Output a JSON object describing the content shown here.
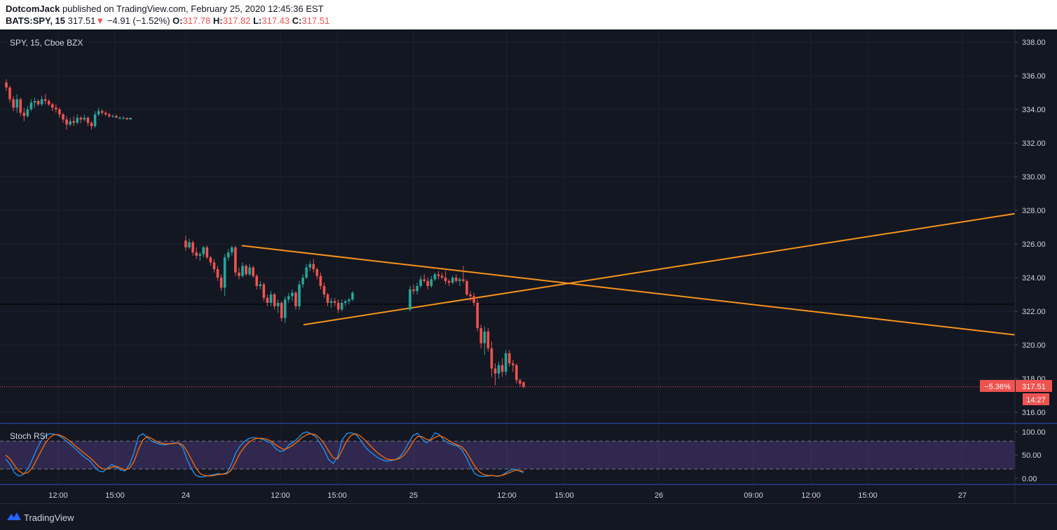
{
  "header": {
    "author": "DotcomJack",
    "published": "published on TradingView.com, February 25, 2020 12:45:36 EST",
    "symbol": "BATS:SPY, 15",
    "last": "317.51",
    "change_arrow": "▼",
    "change": "−4.91 (−1.52%)",
    "o_label": "O:",
    "o": "317.78",
    "h_label": "H:",
    "h": "317.82",
    "l_label": "L:",
    "l": "317.43",
    "c_label": "C:",
    "c": "317.51"
  },
  "legend": {
    "series": "SPY, 15, Cboe BZX",
    "indicator": "Stoch RSI"
  },
  "badges": {
    "pct": "−5.36%",
    "price": "317.51",
    "timer": "14:27"
  },
  "footer": {
    "brand": "TradingView"
  },
  "colors": {
    "up": "#26a69a",
    "down": "#ef5350",
    "trend": "#f7931a",
    "k_line": "#2196f3",
    "d_line": "#ff6d00",
    "band": "#7e57c2",
    "bg": "#131722",
    "text": "#d1d4dc"
  },
  "chart_data": [
    {
      "type": "candlestick",
      "title": "SPY, 15, Cboe BZX",
      "y_ticks": [
        "338.00",
        "336.00",
        "334.00",
        "332.00",
        "330.00",
        "328.00",
        "326.00",
        "324.00",
        "322.00",
        "320.00",
        "318.00",
        "316.00"
      ],
      "ylim": [
        315.0,
        339.0
      ],
      "x_ticks": [
        "12:00",
        "15:00",
        "24",
        "12:00",
        "15:00",
        "25",
        "12:00",
        "15:00",
        "26",
        "09:00",
        "12:00",
        "15:00",
        "27"
      ],
      "last_price": 317.51,
      "last_price_line": 317.51,
      "horizontal_line": 322.42,
      "trendlines": [
        {
          "from": [
            "Feb 24 ~11:00",
            325.9
          ],
          "to": [
            "right edge",
            320.6
          ]
        },
        {
          "from": [
            "Feb 24 ~13:00",
            321.2
          ],
          "to": [
            "right edge",
            327.8
          ]
        }
      ],
      "segments": [
        {
          "name": "Feb 21 session",
          "ohlc": [
            [
              335.6,
              335.8,
              335.1,
              335.3
            ],
            [
              335.3,
              335.4,
              334.4,
              334.6
            ],
            [
              334.6,
              334.8,
              333.9,
              334.1
            ],
            [
              334.1,
              334.9,
              333.8,
              334.6
            ],
            [
              334.6,
              334.7,
              333.6,
              333.8
            ],
            [
              333.8,
              334.1,
              333.3,
              333.6
            ],
            [
              333.6,
              334.2,
              333.5,
              334.0
            ],
            [
              334.0,
              334.6,
              333.9,
              334.4
            ],
            [
              334.4,
              334.7,
              334.1,
              334.5
            ],
            [
              334.5,
              334.6,
              334.2,
              334.3
            ],
            [
              334.3,
              334.8,
              334.2,
              334.6
            ],
            [
              334.6,
              334.9,
              334.3,
              334.5
            ],
            [
              334.5,
              334.6,
              334.2,
              334.3
            ],
            [
              334.3,
              334.4,
              333.9,
              334.1
            ],
            [
              334.1,
              334.3,
              333.8,
              334.0
            ],
            [
              334.0,
              334.1,
              333.5,
              333.7
            ],
            [
              333.7,
              333.8,
              333.2,
              333.4
            ],
            [
              333.4,
              333.6,
              332.8,
              333.1
            ],
            [
              333.1,
              333.5,
              333.0,
              333.3
            ],
            [
              333.3,
              333.6,
              333.0,
              333.2
            ],
            [
              333.2,
              333.7,
              333.1,
              333.5
            ],
            [
              333.5,
              333.6,
              333.2,
              333.4
            ],
            [
              333.4,
              333.7,
              333.3,
              333.5
            ],
            [
              333.5,
              333.6,
              333.0,
              333.2
            ],
            [
              333.2,
              333.3,
              332.8,
              333.0
            ],
            [
              333.0,
              333.9,
              332.9,
              333.7
            ],
            [
              333.7,
              334.1,
              333.6,
              333.9
            ],
            [
              333.9,
              334.0,
              333.7,
              333.8
            ],
            [
              333.8,
              333.9,
              333.6,
              333.7
            ],
            [
              333.7,
              333.8,
              333.5,
              333.6
            ],
            [
              333.6,
              333.7,
              333.5,
              333.6
            ],
            [
              333.6,
              333.7,
              333.5,
              333.5
            ],
            [
              333.5,
              333.6,
              333.4,
              333.5
            ],
            [
              333.5,
              333.6,
              333.4,
              333.5
            ],
            [
              333.5,
              333.5,
              333.4,
              333.4
            ],
            [
              333.4,
              333.5,
              333.4,
              333.5
            ]
          ]
        },
        {
          "name": "Feb 24 session",
          "ohlc": [
            [
              326.2,
              326.5,
              325.6,
              325.8
            ],
            [
              325.8,
              326.3,
              325.7,
              326.1
            ],
            [
              326.1,
              326.2,
              325.3,
              325.5
            ],
            [
              325.5,
              325.8,
              325.1,
              325.3
            ],
            [
              325.3,
              325.5,
              325.0,
              325.4
            ],
            [
              325.4,
              325.9,
              325.2,
              325.8
            ],
            [
              325.8,
              325.9,
              325.1,
              325.2
            ],
            [
              325.2,
              325.3,
              324.7,
              324.9
            ],
            [
              324.9,
              325.1,
              324.3,
              324.5
            ],
            [
              324.5,
              324.7,
              323.8,
              324.0
            ],
            [
              324.0,
              324.2,
              323.2,
              323.4
            ],
            [
              323.4,
              325.4,
              322.9,
              325.2
            ],
            [
              325.2,
              325.7,
              325.0,
              325.5
            ],
            [
              325.5,
              325.9,
              325.3,
              325.8
            ],
            [
              325.8,
              325.9,
              324.1,
              324.3
            ],
            [
              324.3,
              324.6,
              323.9,
              324.1
            ],
            [
              324.1,
              324.9,
              324.0,
              324.7
            ],
            [
              324.7,
              324.8,
              324.1,
              324.2
            ],
            [
              324.2,
              324.8,
              324.1,
              324.6
            ],
            [
              324.6,
              324.7,
              324.0,
              324.1
            ],
            [
              324.1,
              324.2,
              323.3,
              323.5
            ],
            [
              323.5,
              323.8,
              323.3,
              323.6
            ],
            [
              323.6,
              323.7,
              322.6,
              322.8
            ],
            [
              322.8,
              323.0,
              322.3,
              322.5
            ],
            [
              322.5,
              323.2,
              322.3,
              323.0
            ],
            [
              323.0,
              323.1,
              322.1,
              322.3
            ],
            [
              322.3,
              322.7,
              321.9,
              322.5
            ],
            [
              322.5,
              322.6,
              321.4,
              321.6
            ],
            [
              321.6,
              322.9,
              321.3,
              322.7
            ],
            [
              322.7,
              323.1,
              322.5,
              322.9
            ],
            [
              322.9,
              323.3,
              322.6,
              323.1
            ],
            [
              323.1,
              323.2,
              322.1,
              322.3
            ],
            [
              322.3,
              323.8,
              322.1,
              323.6
            ],
            [
              323.6,
              324.2,
              323.4,
              324.0
            ],
            [
              324.0,
              324.8,
              323.9,
              324.6
            ],
            [
              324.6,
              325.0,
              324.4,
              324.8
            ],
            [
              324.8,
              325.1,
              324.3,
              324.5
            ],
            [
              324.5,
              324.6,
              323.9,
              324.1
            ],
            [
              324.1,
              324.3,
              323.3,
              323.5
            ],
            [
              323.5,
              323.7,
              322.8,
              323.0
            ],
            [
              323.0,
              323.1,
              322.3,
              322.5
            ],
            [
              322.5,
              322.8,
              322.2,
              322.6
            ],
            [
              322.6,
              322.8,
              322.3,
              322.5
            ],
            [
              322.5,
              322.7,
              321.9,
              322.1
            ],
            [
              322.1,
              322.7,
              322.0,
              322.5
            ],
            [
              322.5,
              322.7,
              322.3,
              322.6
            ],
            [
              322.6,
              322.8,
              322.4,
              322.7
            ],
            [
              322.7,
              323.2,
              322.6,
              323.1
            ]
          ]
        },
        {
          "name": "Feb 25 session",
          "ohlc": [
            [
              322.1,
              323.5,
              322.0,
              323.3
            ],
            [
              323.3,
              323.6,
              323.0,
              323.2
            ],
            [
              323.2,
              323.7,
              323.0,
              323.5
            ],
            [
              323.5,
              324.1,
              323.4,
              323.9
            ],
            [
              323.9,
              324.2,
              323.7,
              323.8
            ],
            [
              323.8,
              324.0,
              323.3,
              323.5
            ],
            [
              323.5,
              324.1,
              323.4,
              323.9
            ],
            [
              323.9,
              324.3,
              323.8,
              324.2
            ],
            [
              324.2,
              324.4,
              323.9,
              324.1
            ],
            [
              324.1,
              324.3,
              323.9,
              324.0
            ],
            [
              324.0,
              324.4,
              323.6,
              323.8
            ],
            [
              323.8,
              323.9,
              323.5,
              323.7
            ],
            [
              323.7,
              324.1,
              323.6,
              324.0
            ],
            [
              324.0,
              324.2,
              323.7,
              323.8
            ],
            [
              323.8,
              324.0,
              323.5,
              323.9
            ],
            [
              323.9,
              324.7,
              323.7,
              323.8
            ],
            [
              323.8,
              323.9,
              322.9,
              323.0
            ],
            [
              323.0,
              323.2,
              322.6,
              322.9
            ],
            [
              322.9,
              323.1,
              322.3,
              322.5
            ],
            [
              322.5,
              322.7,
              320.8,
              321.0
            ],
            [
              321.0,
              321.2,
              319.8,
              320.1
            ],
            [
              320.1,
              321.1,
              319.4,
              320.8
            ],
            [
              320.8,
              321.0,
              319.6,
              319.8
            ],
            [
              319.8,
              320.2,
              318.1,
              318.6
            ],
            [
              318.6,
              318.9,
              317.6,
              318.3
            ],
            [
              318.3,
              319.0,
              318.0,
              318.8
            ],
            [
              318.8,
              319.2,
              318.1,
              318.4
            ],
            [
              318.4,
              319.7,
              318.2,
              319.5
            ],
            [
              319.5,
              319.7,
              318.7,
              318.9
            ],
            [
              318.9,
              319.1,
              318.4,
              318.8
            ],
            [
              318.8,
              318.9,
              317.7,
              317.9
            ],
            [
              317.9,
              318.0,
              317.5,
              317.7
            ],
            [
              317.78,
              317.82,
              317.43,
              317.51
            ]
          ]
        }
      ]
    },
    {
      "type": "line",
      "title": "Stoch RSI",
      "y_ticks": [
        "100.00",
        "50.00",
        "0.00"
      ],
      "ylim": [
        -10,
        110
      ],
      "band": [
        20,
        80
      ],
      "series": [
        {
          "values": [
            42,
            30,
            12,
            5,
            8,
            20,
            40,
            62,
            80,
            92,
            96,
            95,
            92,
            86,
            78,
            70,
            62,
            52,
            44,
            38,
            26,
            16,
            14,
            22,
            30,
            24,
            18,
            16,
            30,
            55,
            90,
            96,
            88,
            80,
            76,
            73,
            72,
            74,
            76,
            76,
            66,
            40,
            20,
            6,
            3,
            4,
            6,
            8,
            10,
            9,
            12,
            30,
            55,
            70,
            80,
            86,
            88,
            86,
            84,
            80,
            76,
            64,
            58,
            60,
            72,
            78,
            86,
            96,
            100,
            96,
            90,
            76,
            60,
            40,
            32,
            46,
            82,
            96,
            98,
            95,
            85,
            70,
            60,
            52,
            45,
            40,
            37,
            38,
            40,
            46,
            58,
            76,
            92,
            97,
            86,
            76,
            84,
            98,
            94,
            82,
            76,
            72,
            70,
            62,
            46,
            26,
            10,
            5,
            4,
            5,
            6,
            4,
            6,
            12,
            18,
            20,
            16,
            12
          ]
        },
        {
          "values": [
            50,
            42,
            28,
            16,
            10,
            12,
            22,
            40,
            58,
            76,
            88,
            94,
            94,
            90,
            84,
            76,
            68,
            60,
            52,
            45,
            36,
            26,
            20,
            20,
            24,
            26,
            22,
            18,
            22,
            36,
            62,
            82,
            90,
            86,
            80,
            76,
            74,
            74,
            75,
            76,
            72,
            58,
            40,
            22,
            10,
            6,
            5,
            6,
            8,
            9,
            10,
            18,
            36,
            55,
            68,
            78,
            84,
            86,
            86,
            84,
            80,
            72,
            66,
            62,
            66,
            72,
            80,
            88,
            94,
            96,
            94,
            86,
            74,
            58,
            44,
            42,
            60,
            80,
            92,
            96,
            92,
            84,
            74,
            64,
            55,
            48,
            42,
            40,
            40,
            43,
            50,
            62,
            78,
            90,
            90,
            84,
            82,
            88,
            92,
            88,
            82,
            76,
            72,
            68,
            58,
            42,
            26,
            14,
            8,
            6,
            6,
            5,
            6,
            9,
            13,
            17,
            17,
            15
          ]
        }
      ]
    }
  ]
}
